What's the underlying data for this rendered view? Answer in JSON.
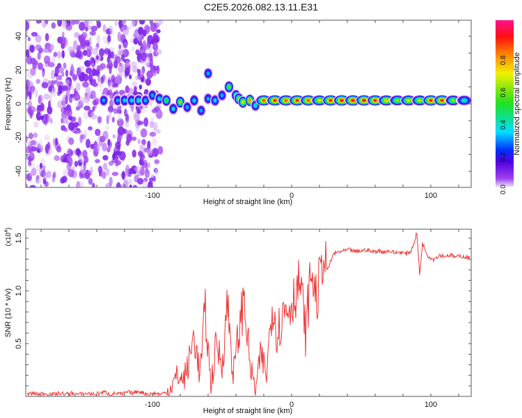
{
  "title": "C2E5.2026.082.13.11.E31",
  "colors": {
    "line": "#ee3333",
    "frame": "#555555"
  },
  "chart_data": [
    {
      "type": "heatmap",
      "title": "C2E5.2026.082.13.11.E31",
      "xlabel": "Height of straight line (km)",
      "ylabel": "Frequency (Hz)",
      "xlim": [
        -191,
        129
      ],
      "ylim": [
        -49.5,
        49.5
      ],
      "xticks": [
        -100,
        0,
        100
      ],
      "yticks": [
        -40,
        -20,
        0,
        20,
        40
      ],
      "colorbar": {
        "label": "Normalized spectral amplitude",
        "range": [
          0,
          1.03
        ],
        "ticks": [
          "0.0",
          "0.2",
          "0.4",
          "0.6",
          "0.8"
        ]
      },
      "noise_region": {
        "x_range": [
          -191,
          -94
        ],
        "freq_range": [
          -49.5,
          49.5
        ],
        "amplitude_max": 0.1
      },
      "blobs": [
        [
          -135,
          2,
          0.3
        ],
        [
          -125,
          2,
          0.3
        ],
        [
          -120,
          2,
          0.35
        ],
        [
          -115,
          2,
          0.35
        ],
        [
          -110,
          2,
          0.4
        ],
        [
          -105,
          2,
          0.3
        ],
        [
          -100,
          5,
          0.3
        ],
        [
          -95,
          3,
          0.35
        ],
        [
          -90,
          2,
          0.5
        ],
        [
          -85,
          -3,
          0.35
        ],
        [
          -80,
          1,
          0.6
        ],
        [
          -75,
          -2,
          0.3
        ],
        [
          -70,
          2,
          0.35
        ],
        [
          -65,
          -4,
          0.3
        ],
        [
          -60,
          3,
          0.3
        ],
        [
          -60,
          18,
          0.3
        ],
        [
          -55,
          2,
          0.35
        ],
        [
          -50,
          5,
          0.3
        ],
        [
          -45,
          10,
          0.55
        ],
        [
          -40,
          5,
          0.5
        ],
        [
          -38,
          3,
          0.6
        ],
        [
          -35,
          1,
          0.7
        ],
        [
          -30,
          2,
          0.8
        ],
        [
          -26,
          -1,
          0.4
        ]
      ],
      "ridge": {
        "freq": 2,
        "x": [
          -20,
          -12,
          -4,
          4,
          12,
          20,
          28,
          36,
          44,
          52,
          60,
          68,
          76,
          84,
          92,
          100,
          108,
          116,
          124
        ],
        "amp": [
          0.85,
          0.9,
          0.85,
          0.9,
          0.85,
          0.7,
          0.9,
          0.95,
          0.95,
          0.95,
          0.9,
          0.75,
          0.6,
          0.7,
          0.65,
          0.9,
          0.9,
          0.6,
          0.4
        ]
      }
    },
    {
      "type": "line",
      "xlabel": "Height of straight line (km)",
      "ylabel": "SNR (10 * v/v)",
      "y_multiplier": "(x10",
      "y_multiplier_exp": "4",
      "y_multiplier_close": ")",
      "xlim": [
        -191,
        129
      ],
      "ylim": [
        0,
        1.585
      ],
      "xticks": [
        -100,
        0,
        100
      ],
      "yticks": [
        "0.5",
        "1.0",
        "1.5"
      ],
      "series": [
        {
          "name": "SNR",
          "x": [
            -190,
            -186,
            -182,
            -178,
            -174,
            -170,
            -166,
            -162,
            -158,
            -154,
            -150,
            -146,
            -142,
            -138,
            -134,
            -130,
            -126,
            -122,
            -118,
            -114,
            -110,
            -106,
            -102,
            -98,
            -94,
            -90,
            -86,
            -82,
            -78,
            -74,
            -70,
            -66,
            -62,
            -58,
            -54,
            -50,
            -46,
            -42,
            -38,
            -34,
            -30,
            -26,
            -22,
            -18,
            -14,
            -10,
            -6,
            -2,
            2,
            6,
            10,
            14,
            18,
            22,
            26,
            30,
            34,
            38,
            42,
            46,
            50,
            54,
            58,
            62,
            66,
            70,
            74,
            78,
            82,
            86,
            90,
            92,
            94,
            98,
            102,
            106,
            110,
            114,
            118,
            122,
            126,
            128
          ],
          "values": [
            0.02,
            0.03,
            0.02,
            0.03,
            0.02,
            0.02,
            0.03,
            0.02,
            0.03,
            0.02,
            0.02,
            0.03,
            0.02,
            0.03,
            0.04,
            0.02,
            0.03,
            0.02,
            0.04,
            0.03,
            0.05,
            0.03,
            0.02,
            0.03,
            0.02,
            0.04,
            0.1,
            0.2,
            0.15,
            0.3,
            0.6,
            0.2,
            0.8,
            0.1,
            0.5,
            0.3,
            0.9,
            0.2,
            0.6,
            0.95,
            0.3,
            0.05,
            0.4,
            0.2,
            0.9,
            0.6,
            0.8,
            0.85,
            0.95,
            1.1,
            0.6,
            1.2,
            0.9,
            1.3,
            1.2,
            1.35,
            1.37,
            1.38,
            1.39,
            1.37,
            1.38,
            1.39,
            1.37,
            1.38,
            1.37,
            1.38,
            1.36,
            1.37,
            1.35,
            1.38,
            1.55,
            1.15,
            1.45,
            1.33,
            1.3,
            1.34,
            1.33,
            1.34,
            1.32,
            1.33,
            1.32,
            1.31
          ]
        }
      ]
    }
  ]
}
